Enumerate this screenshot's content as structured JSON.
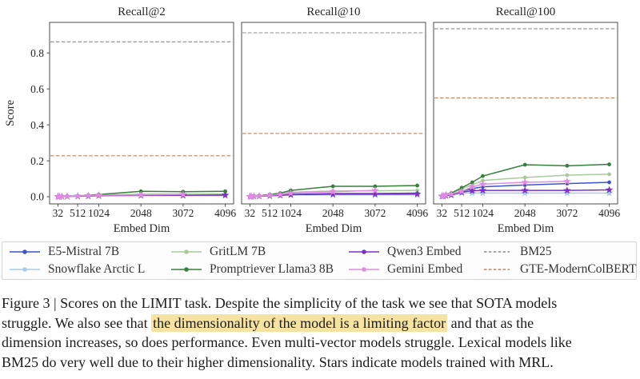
{
  "figure": {
    "caption": {
      "highlight_color": "#f6e3a1",
      "lines": [
        [
          {
            "t": "Figure 3 | Scores on the LIMIT task. Despite the simplicity of the task we see that SOTA models",
            "h": false
          }
        ],
        [
          {
            "t": "struggle. We also see that ",
            "h": false
          },
          {
            "t": "the dimensionality of the model is a limiting factor",
            "h": true
          },
          {
            "t": " and that as the",
            "h": false
          }
        ],
        [
          {
            "t": "dimension increases, so does performance. Even multi-vector models struggle. Lexical models like",
            "h": false
          }
        ],
        [
          {
            "t": "BM25 do very well due to their higher dimensionality. Stars indicate models trained with MRL.",
            "h": false
          }
        ]
      ]
    },
    "legend": {
      "columns": [
        [
          "E5-Mistral 7B",
          "Snowflake Arctic L"
        ],
        [
          "GritLM 7B",
          "Promptriever Llama3 8B"
        ],
        [
          "Qwen3 Embed",
          "Gemini Embed"
        ],
        [
          "BM25",
          "GTE-ModernColBERT"
        ]
      ]
    }
  },
  "chart_data": {
    "type": "line",
    "xlabel": "Embed Dim",
    "ylabel": "Score",
    "x": [
      32,
      64,
      128,
      256,
      512,
      768,
      1024,
      2048,
      3072,
      4096
    ],
    "x_ticks": [
      32,
      512,
      1024,
      2048,
      3072,
      4096
    ],
    "y_ticks": [
      0.0,
      0.2,
      0.4,
      0.6,
      0.8
    ],
    "xlim": [
      -171,
      4299
    ],
    "ylim": [
      -0.04,
      0.97
    ],
    "grid": false,
    "legend_position": "below",
    "series_styles": {
      "E5-Mistral 7B": {
        "color": "#3d55c5",
        "marker": "circle",
        "style": "solid"
      },
      "Snowflake Arctic L": {
        "color": "#a8cbe6",
        "marker": "star",
        "style": "solid"
      },
      "GritLM 7B": {
        "color": "#a9cb9b",
        "marker": "circle",
        "style": "solid"
      },
      "Promptriever Llama3 8B": {
        "color": "#377f3d",
        "marker": "circle",
        "style": "solid"
      },
      "Qwen3 Embed": {
        "color": "#7d30c3",
        "marker": "star",
        "style": "solid"
      },
      "Gemini Embed": {
        "color": "#df8be0",
        "marker": "star",
        "style": "solid"
      },
      "BM25": {
        "color": "#8c8c8c",
        "marker": "none",
        "style": "dashed"
      },
      "GTE-ModernColBERT": {
        "color": "#c5805a",
        "marker": "none",
        "style": "dashed"
      }
    },
    "panels": [
      {
        "title": "Recall@2",
        "show_y_axis": true,
        "hlines": [
          {
            "name": "BM25",
            "value": 0.862
          },
          {
            "name": "GTE-ModernColBERT",
            "value": 0.228
          }
        ],
        "series": [
          {
            "name": "E5-Mistral 7B",
            "y": [
              0.001,
              0.001,
              0.001,
              0.002,
              0.003,
              0.004,
              0.006,
              0.008,
              0.008,
              0.01
            ]
          },
          {
            "name": "Snowflake Arctic L",
            "y": [
              0.0,
              0.001,
              0.001,
              0.001,
              0.002,
              0.003,
              0.005,
              0.006,
              0.006,
              0.006
            ]
          },
          {
            "name": "GritLM 7B",
            "y": [
              0.001,
              0.001,
              0.002,
              0.002,
              0.004,
              0.006,
              0.009,
              0.014,
              0.015,
              0.016
            ]
          },
          {
            "name": "Promptriever Llama3 8B",
            "y": [
              0.001,
              0.001,
              0.002,
              0.003,
              0.005,
              0.008,
              0.012,
              0.03,
              0.028,
              0.03
            ]
          },
          {
            "name": "Qwen3 Embed",
            "y": [
              0.0,
              0.001,
              0.001,
              0.002,
              0.003,
              0.004,
              0.006,
              0.008,
              0.008,
              0.009
            ]
          },
          {
            "name": "Gemini Embed",
            "y": [
              0.001,
              0.001,
              0.001,
              0.002,
              0.004,
              0.006,
              0.008,
              0.01,
              0.013
            ]
          }
        ]
      },
      {
        "title": "Recall@10",
        "show_y_axis": false,
        "hlines": [
          {
            "name": "BM25",
            "value": 0.912
          },
          {
            "name": "GTE-ModernColBERT",
            "value": 0.352
          }
        ],
        "series": [
          {
            "name": "E5-Mistral 7B",
            "y": [
              0.001,
              0.002,
              0.002,
              0.003,
              0.006,
              0.009,
              0.013,
              0.018,
              0.018,
              0.02
            ]
          },
          {
            "name": "Snowflake Arctic L",
            "y": [
              0.001,
              0.001,
              0.002,
              0.002,
              0.005,
              0.007,
              0.01,
              0.01,
              0.01,
              0.01
            ]
          },
          {
            "name": "GritLM 7B",
            "y": [
              0.002,
              0.002,
              0.003,
              0.005,
              0.01,
              0.015,
              0.025,
              0.032,
              0.033,
              0.035
            ]
          },
          {
            "name": "Promptriever Llama3 8B",
            "y": [
              0.002,
              0.003,
              0.004,
              0.006,
              0.012,
              0.02,
              0.035,
              0.058,
              0.058,
              0.062
            ]
          },
          {
            "name": "Qwen3 Embed",
            "y": [
              0.001,
              0.001,
              0.002,
              0.003,
              0.005,
              0.008,
              0.011,
              0.014,
              0.014,
              0.015
            ]
          },
          {
            "name": "Gemini Embed",
            "y": [
              0.001,
              0.002,
              0.003,
              0.004,
              0.008,
              0.012,
              0.02,
              0.028,
              0.035
            ]
          }
        ]
      },
      {
        "title": "Recall@100",
        "show_y_axis": false,
        "hlines": [
          {
            "name": "BM25",
            "value": 0.935
          },
          {
            "name": "GTE-ModernColBERT",
            "value": 0.55
          }
        ],
        "series": [
          {
            "name": "E5-Mistral 7B",
            "y": [
              0.003,
              0.005,
              0.008,
              0.012,
              0.03,
              0.045,
              0.055,
              0.065,
              0.073,
              0.08
            ]
          },
          {
            "name": "Snowflake Arctic L",
            "y": [
              0.002,
              0.003,
              0.005,
              0.008,
              0.02,
              0.02,
              0.02,
              0.02,
              0.02,
              0.02
            ]
          },
          {
            "name": "GritLM 7B",
            "y": [
              0.004,
              0.007,
              0.01,
              0.018,
              0.045,
              0.065,
              0.09,
              0.107,
              0.12,
              0.125
            ]
          },
          {
            "name": "Promptriever Llama3 8B",
            "y": [
              0.005,
              0.008,
              0.012,
              0.02,
              0.05,
              0.08,
              0.115,
              0.178,
              0.172,
              0.18
            ]
          },
          {
            "name": "Qwen3 Embed",
            "y": [
              0.003,
              0.004,
              0.007,
              0.01,
              0.025,
              0.033,
              0.035,
              0.035,
              0.035,
              0.038
            ]
          },
          {
            "name": "Gemini Embed",
            "y": [
              0.004,
              0.006,
              0.01,
              0.015,
              0.03,
              0.055,
              0.07,
              0.08,
              0.085
            ]
          }
        ]
      }
    ]
  }
}
